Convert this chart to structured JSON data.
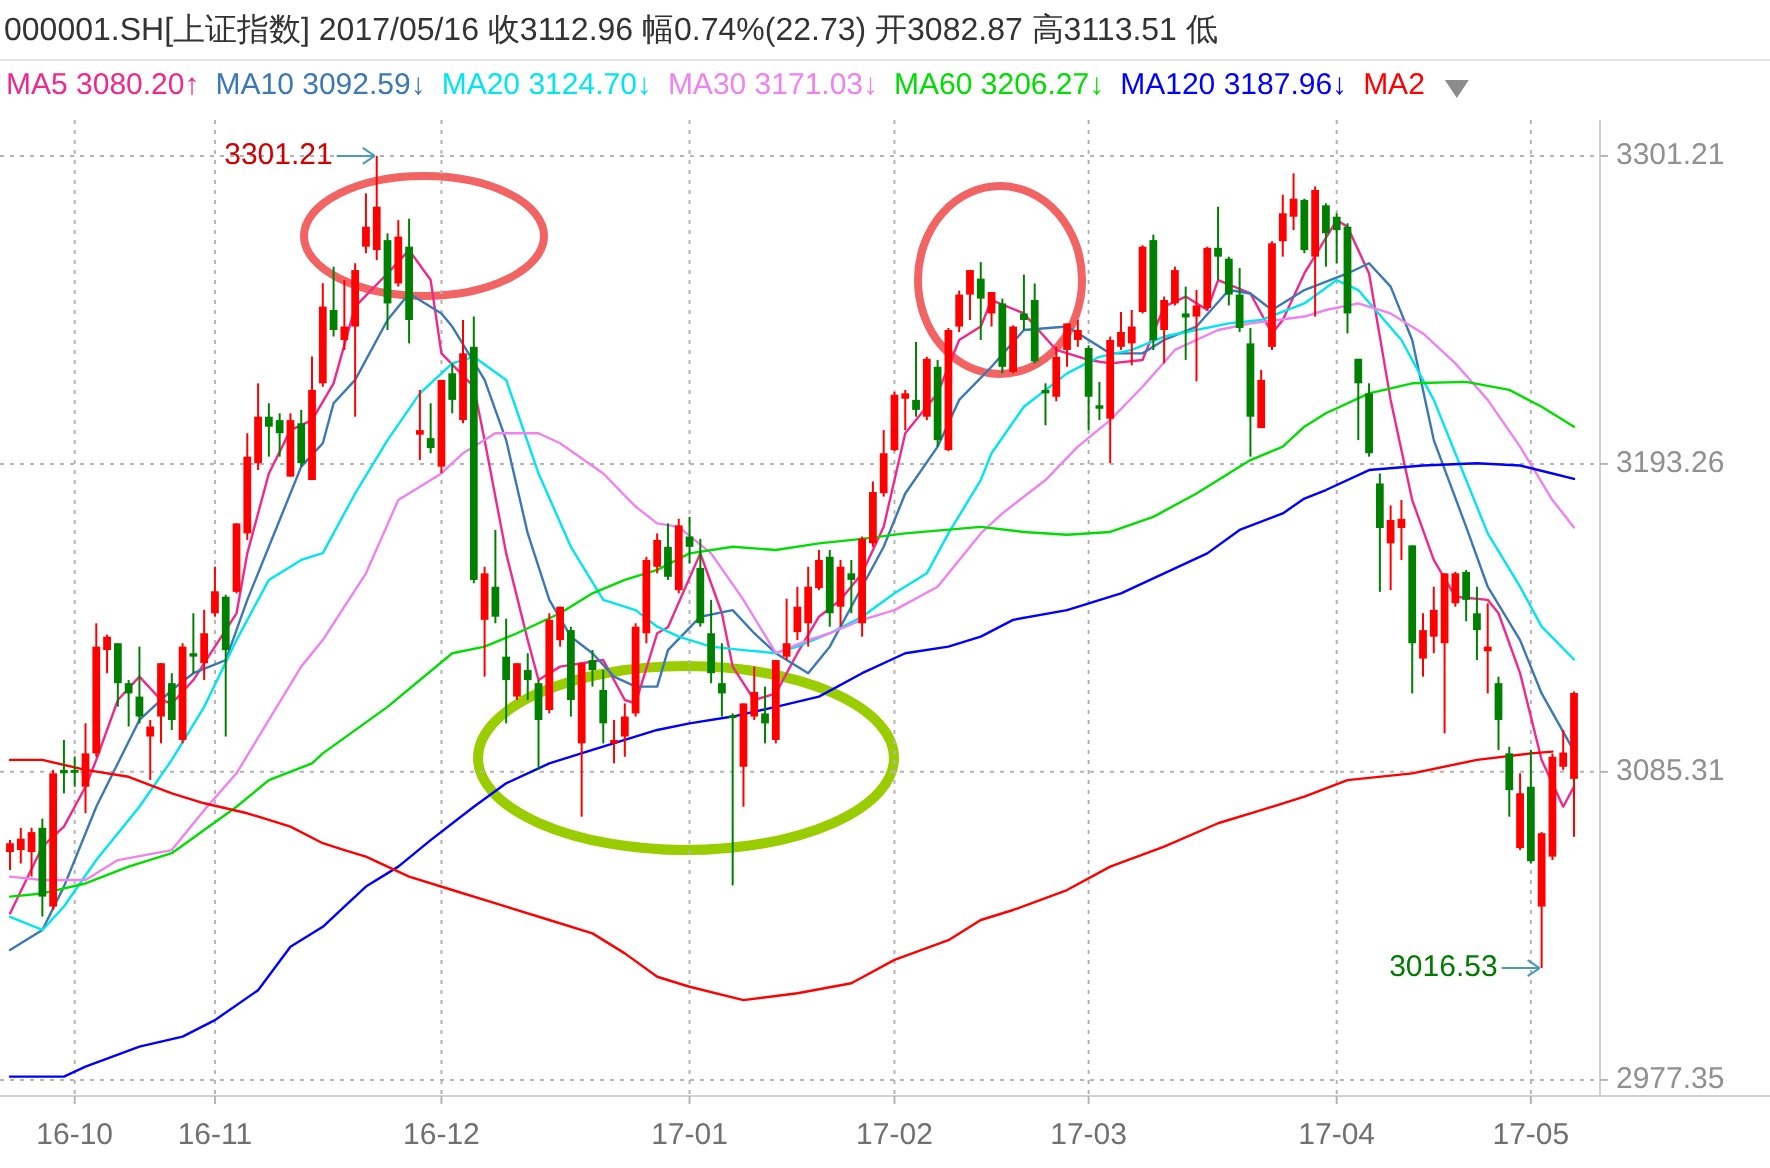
{
  "chart_data": {
    "type": "candlestick",
    "title": "000001.SH[上证指数]  2017/05/16  收3112.96  幅0.74%(22.73)  开3082.87  高3113.51  低",
    "legend": "top",
    "grid": true,
    "ylim": [
      2971.7,
      3313.8
    ],
    "yticks": [
      2977.35,
      3085.31,
      3193.26,
      3301.21
    ],
    "categories": [
      null,
      null,
      null,
      null,
      null,
      null,
      "16-10",
      null,
      null,
      null,
      null,
      null,
      null,
      null,
      null,
      null,
      null,
      null,
      null,
      "16-11",
      null,
      null,
      null,
      null,
      null,
      null,
      null,
      null,
      null,
      null,
      null,
      null,
      null,
      null,
      null,
      null,
      null,
      null,
      null,
      null,
      "16-12",
      null,
      null,
      null,
      null,
      null,
      null,
      null,
      null,
      null,
      null,
      null,
      null,
      null,
      null,
      null,
      null,
      null,
      null,
      null,
      null,
      null,
      null,
      "17-01",
      null,
      null,
      null,
      null,
      null,
      null,
      null,
      null,
      null,
      null,
      null,
      null,
      null,
      null,
      null,
      null,
      null,
      null,
      "17-02",
      null,
      null,
      null,
      null,
      null,
      null,
      null,
      null,
      null,
      null,
      null,
      null,
      null,
      null,
      null,
      null,
      null,
      "17-03",
      null,
      null,
      null,
      null,
      null,
      null,
      null,
      null,
      null,
      null,
      null,
      null,
      null,
      null,
      null,
      null,
      null,
      null,
      null,
      null,
      null,
      null,
      "17-04",
      null,
      null,
      null,
      null,
      null,
      null,
      null,
      null,
      null,
      null,
      null,
      null,
      null,
      null,
      null,
      null,
      null,
      "17-05",
      null,
      null,
      null,
      null
    ],
    "ohlc": [
      [
        3057.2,
        3061.4,
        3050.9,
        3060.3
      ],
      [
        3057.9,
        3065.7,
        3053.2,
        3061.9
      ],
      [
        3057.2,
        3065.7,
        3048.6,
        3064.2
      ],
      [
        3065.7,
        3068.9,
        3034.6,
        3041.6
      ],
      [
        3038.1,
        3086.0,
        3036.9,
        3084.8
      ],
      [
        3086.0,
        3096.5,
        3077.8,
        3084.8
      ],
      [
        3086.0,
        3090.7,
        3080.1,
        3085.0
      ],
      [
        3080.1,
        3102.3,
        3070.8,
        3091.8
      ],
      [
        3091.8,
        3137.4,
        3090.6,
        3129.2
      ],
      [
        3128.0,
        3133.4,
        3119.9,
        3132.7
      ],
      [
        3130.4,
        3130.4,
        3108.2,
        3116.4
      ],
      [
        3116.4,
        3117.5,
        3101.2,
        3112.8
      ],
      [
        3111.7,
        3129.2,
        3102.3,
        3104.7
      ],
      [
        3097.7,
        3103.5,
        3082.5,
        3101.2
      ],
      [
        3104.7,
        3123.4,
        3095.3,
        3123.4
      ],
      [
        3116.4,
        3119.9,
        3100.0,
        3103.5
      ],
      [
        3096.5,
        3130.4,
        3095.3,
        3129.2
      ],
      [
        3126.9,
        3140.9,
        3119.9,
        3125.7
      ],
      [
        3123.4,
        3142.1,
        3117.5,
        3133.9
      ],
      [
        3140.9,
        3157.2,
        3139.7,
        3148.6
      ],
      [
        3146.7,
        3147.4,
        3097.7,
        3128.0
      ],
      [
        3148.4,
        3172.4,
        3147.9,
        3172.4
      ],
      [
        3168.9,
        3204.0,
        3166.6,
        3195.8
      ],
      [
        3193.5,
        3221.5,
        3191.1,
        3209.8
      ],
      [
        3209.8,
        3214.5,
        3195.8,
        3206.3
      ],
      [
        3208.6,
        3211.0,
        3195.8,
        3204.0
      ],
      [
        3188.8,
        3211.0,
        3188.8,
        3208.6
      ],
      [
        3207.5,
        3212.2,
        3192.3,
        3193.5
      ],
      [
        3187.6,
        3230.9,
        3187.6,
        3219.2
      ],
      [
        3221.5,
        3256.6,
        3220.3,
        3248.4
      ],
      [
        3247.2,
        3262.4,
        3237.9,
        3240.2
      ],
      [
        3236.7,
        3257.7,
        3233.2,
        3241.4
      ],
      [
        3241.4,
        3263.6,
        3209.8,
        3261.2
      ],
      [
        3269.4,
        3288.1,
        3267.1,
        3276.4
      ],
      [
        3268.2,
        3301.21,
        3264.7,
        3283.4
      ],
      [
        3271.7,
        3274.1,
        3240.2,
        3249.5
      ],
      [
        3256.5,
        3278.7,
        3255.4,
        3272.9
      ],
      [
        3269.4,
        3279.2,
        3235.5,
        3243.7
      ],
      [
        3203.5,
        3219.2,
        3194.6,
        3205.1
      ],
      [
        3202.3,
        3214.5,
        3197.0,
        3198.8
      ],
      [
        3192.3,
        3222.7,
        3190.0,
        3222.7
      ],
      [
        3225.0,
        3228.5,
        3211.0,
        3215.7
      ],
      [
        3208.6,
        3243.7,
        3207.5,
        3232.0
      ],
      [
        3234.3,
        3244.9,
        3151.4,
        3152.6
      ],
      [
        3138.6,
        3157.2,
        3118.7,
        3154.9
      ],
      [
        3150.2,
        3170.1,
        3137.4,
        3139.7
      ],
      [
        3125.7,
        3139.0,
        3102.3,
        3117.5
      ],
      [
        3111.7,
        3123.4,
        3110.5,
        3123.4
      ],
      [
        3121.0,
        3126.9,
        3110.5,
        3117.5
      ],
      [
        3116.4,
        3117.5,
        3086.0,
        3103.5
      ],
      [
        3107.0,
        3140.9,
        3105.8,
        3138.6
      ],
      [
        3131.5,
        3143.2,
        3129.2,
        3143.2
      ],
      [
        3135.0,
        3136.2,
        3104.7,
        3110.5
      ],
      [
        3095.3,
        3123.4,
        3069.6,
        3123.4
      ],
      [
        3124.5,
        3128.0,
        3115.2,
        3121.0
      ],
      [
        3114.0,
        3121.0,
        3095.3,
        3102.3
      ],
      [
        3095.3,
        3103.5,
        3088.3,
        3096.5
      ],
      [
        3097.7,
        3109.3,
        3090.6,
        3104.7
      ],
      [
        3105.8,
        3137.4,
        3104.7,
        3136.2
      ],
      [
        3133.9,
        3160.7,
        3130.4,
        3159.6
      ],
      [
        3157.2,
        3168.9,
        3154.9,
        3166.6
      ],
      [
        3164.2,
        3172.4,
        3152.6,
        3153.7
      ],
      [
        3149.0,
        3174.0,
        3147.9,
        3171.7
      ],
      [
        3167.8,
        3174.7,
        3158.4,
        3164.2
      ],
      [
        3156.8,
        3167.0,
        3136.2,
        3137.4
      ],
      [
        3133.9,
        3145.6,
        3116.4,
        3119.9
      ],
      [
        3116.4,
        3130.4,
        3104.7,
        3112.8
      ],
      [
        3105.1,
        3105.8,
        3045.5,
        3104.2
      ],
      [
        3087.1,
        3109.3,
        3073.1,
        3109.3
      ],
      [
        3104.7,
        3122.2,
        3103.5,
        3113.3
      ],
      [
        3105.8,
        3115.2,
        3095.3,
        3102.3
      ],
      [
        3096.5,
        3124.5,
        3095.3,
        3124.5
      ],
      [
        3125.7,
        3146.0,
        3124.5,
        3130.4
      ],
      [
        3134.3,
        3150.2,
        3131.5,
        3143.2
      ],
      [
        3137.4,
        3157.2,
        3129.2,
        3150.2
      ],
      [
        3149.7,
        3163.1,
        3149.0,
        3159.6
      ],
      [
        3160.7,
        3163.1,
        3136.2,
        3140.9
      ],
      [
        3143.2,
        3159.6,
        3136.2,
        3157.2
      ],
      [
        3154.9,
        3159.6,
        3140.9,
        3152.6
      ],
      [
        3137.4,
        3167.8,
        3132.7,
        3167.1
      ],
      [
        3165.4,
        3187.1,
        3164.2,
        3183.4
      ],
      [
        3183.0,
        3205.1,
        3181.8,
        3197.0
      ],
      [
        3198.1,
        3218.5,
        3197.7,
        3217.5
      ],
      [
        3216.1,
        3219.2,
        3205.1,
        3218.0
      ],
      [
        3215.7,
        3236.0,
        3209.8,
        3212.2
      ],
      [
        3209.8,
        3230.8,
        3208.6,
        3230.1
      ],
      [
        3227.3,
        3229.7,
        3199.3,
        3201.6
      ],
      [
        3198.1,
        3240.9,
        3197.7,
        3240.2
      ],
      [
        3241.4,
        3254.0,
        3239.5,
        3252.6
      ],
      [
        3252.6,
        3261.2,
        3243.7,
        3261.2
      ],
      [
        3258.2,
        3264.0,
        3236.7,
        3251.2
      ],
      [
        3246.0,
        3253.5,
        3241.4,
        3253.5
      ],
      [
        3249.5,
        3251.2,
        3225.0,
        3227.3
      ],
      [
        3225.5,
        3241.8,
        3225.0,
        3241.4
      ],
      [
        3246.0,
        3259.6,
        3240.2,
        3243.7
      ],
      [
        3250.7,
        3256.5,
        3228.5,
        3229.2
      ],
      [
        3219.2,
        3221.5,
        3206.8,
        3218.0
      ],
      [
        3216.8,
        3234.3,
        3215.2,
        3230.8
      ],
      [
        3233.2,
        3242.5,
        3227.3,
        3242.5
      ],
      [
        3236.7,
        3243.7,
        3234.3,
        3240.2
      ],
      [
        3233.9,
        3234.8,
        3205.1,
        3216.8
      ],
      [
        3213.8,
        3222.0,
        3208.6,
        3212.6
      ],
      [
        3209.1,
        3237.9,
        3193.5,
        3236.7
      ],
      [
        3234.3,
        3246.5,
        3233.2,
        3239.5
      ],
      [
        3235.5,
        3247.2,
        3227.8,
        3241.4
      ],
      [
        3246.5,
        3269.9,
        3246.0,
        3269.4
      ],
      [
        3271.7,
        3273.6,
        3233.2,
        3236.7
      ],
      [
        3240.2,
        3251.9,
        3228.5,
        3250.7
      ],
      [
        3249.5,
        3262.4,
        3248.8,
        3261.2
      ],
      [
        3246.0,
        3255.4,
        3229.7,
        3244.6
      ],
      [
        3244.9,
        3254.2,
        3222.2,
        3248.8
      ],
      [
        3247.9,
        3269.4,
        3247.2,
        3269.0
      ],
      [
        3269.0,
        3283.4,
        3257.7,
        3265.9
      ],
      [
        3265.2,
        3265.9,
        3248.8,
        3252.6
      ],
      [
        3252.6,
        3261.9,
        3239.5,
        3240.9
      ],
      [
        3235.5,
        3240.9,
        3195.8,
        3209.8
      ],
      [
        3205.8,
        3226.2,
        3205.8,
        3222.7
      ],
      [
        3234.3,
        3271.3,
        3233.2,
        3270.6
      ],
      [
        3271.3,
        3287.6,
        3265.9,
        3281.1
      ],
      [
        3279.9,
        3295.1,
        3275.2,
        3286.2
      ],
      [
        3285.8,
        3286.2,
        3267.1,
        3268.2
      ],
      [
        3265.9,
        3290.5,
        3244.9,
        3289.3
      ],
      [
        3283.9,
        3284.6,
        3262.4,
        3274.1
      ],
      [
        3279.9,
        3281.1,
        3263.6,
        3275.2
      ],
      [
        3276.4,
        3277.6,
        3239.0,
        3246.0
      ],
      [
        3230.1,
        3230.1,
        3201.6,
        3221.5
      ],
      [
        3218.0,
        3221.5,
        3195.8,
        3197.0
      ],
      [
        3186.4,
        3189.9,
        3148.4,
        3170.8
      ],
      [
        3165.4,
        3178.7,
        3149.0,
        3173.6
      ],
      [
        3170.8,
        3180.6,
        3159.6,
        3174.0
      ],
      [
        3164.7,
        3164.7,
        3112.8,
        3130.4
      ],
      [
        3125.0,
        3140.9,
        3118.7,
        3135.0
      ],
      [
        3132.7,
        3150.2,
        3126.9,
        3142.1
      ],
      [
        3130.4,
        3154.9,
        3098.8,
        3154.9
      ],
      [
        3144.4,
        3155.4,
        3143.2,
        3154.9
      ],
      [
        3155.4,
        3156.1,
        3138.1,
        3145.6
      ],
      [
        3140.9,
        3150.2,
        3124.5,
        3135.0
      ],
      [
        3127.6,
        3144.4,
        3112.8,
        3129.2
      ],
      [
        3116.4,
        3118.7,
        3093.0,
        3103.5
      ],
      [
        3091.8,
        3094.1,
        3069.6,
        3078.9
      ],
      [
        3058.6,
        3084.8,
        3057.9,
        3077.8
      ],
      [
        3080.1,
        3093.0,
        3053.3,
        3054.0
      ],
      [
        3038.1,
        3064.2,
        3016.53,
        3063.8
      ],
      [
        3055.6,
        3091.8,
        3054.4,
        3090.6
      ],
      [
        3087.1,
        3100.0,
        3086.0,
        3092.1
      ],
      [
        3082.87,
        3113.51,
        3062.6,
        3112.96
      ]
    ],
    "colors": [
      "#ff0000",
      "#ff0000",
      "#ff0000",
      "#008000",
      "#ff0000",
      "#008000",
      "#008000",
      "#ff0000",
      "#ff0000",
      "#ff0000",
      "#008000",
      "#008000",
      "#008000",
      "#ff0000",
      "#ff0000",
      "#008000",
      "#ff0000",
      "#008000",
      "#ff0000",
      "#ff0000",
      "#008000",
      "#ff0000",
      "#ff0000",
      "#ff0000",
      "#008000",
      "#008000",
      "#ff0000",
      "#008000",
      "#ff0000",
      "#ff0000",
      "#008000",
      "#ff0000",
      "#ff0000",
      "#ff0000",
      "#ff0000",
      "#008000",
      "#ff0000",
      "#008000",
      "#ff0000",
      "#008000",
      "#ff0000",
      "#008000",
      "#ff0000",
      "#008000",
      "#ff0000",
      "#008000",
      "#008000",
      "#ff0000",
      "#008000",
      "#008000",
      "#ff0000",
      "#ff0000",
      "#008000",
      "#ff0000",
      "#008000",
      "#008000",
      "#ff0000",
      "#ff0000",
      "#ff0000",
      "#ff0000",
      "#ff0000",
      "#008000",
      "#ff0000",
      "#008000",
      "#008000",
      "#008000",
      "#008000",
      "#008000",
      "#ff0000",
      "#ff0000",
      "#008000",
      "#ff0000",
      "#ff0000",
      "#ff0000",
      "#ff0000",
      "#ff0000",
      "#008000",
      "#ff0000",
      "#008000",
      "#ff0000",
      "#ff0000",
      "#ff0000",
      "#ff0000",
      "#ff0000",
      "#008000",
      "#ff0000",
      "#008000",
      "#ff0000",
      "#ff0000",
      "#ff0000",
      "#008000",
      "#ff0000",
      "#008000",
      "#ff0000",
      "#008000",
      "#008000",
      "#008000",
      "#ff0000",
      "#ff0000",
      "#ff0000",
      "#008000",
      "#008000",
      "#ff0000",
      "#ff0000",
      "#ff0000",
      "#ff0000",
      "#008000",
      "#ff0000",
      "#ff0000",
      "#008000",
      "#ff0000",
      "#ff0000",
      "#008000",
      "#008000",
      "#008000",
      "#008000",
      "#ff0000",
      "#ff0000",
      "#ff0000",
      "#ff0000",
      "#008000",
      "#ff0000",
      "#008000",
      "#008000",
      "#008000",
      "#008000",
      "#008000",
      "#008000",
      "#ff0000",
      "#ff0000",
      "#008000",
      "#ff0000",
      "#ff0000",
      "#ff0000",
      "#ff0000",
      "#008000",
      "#008000",
      "#ff0000",
      "#008000",
      "#008000",
      "#ff0000",
      "#008000",
      "#ff0000",
      "#ff0000",
      "#ff0000",
      "#ff0000"
    ],
    "series": [
      {
        "type": "line",
        "name": "MA5 3080.20↑",
        "color": "#f0288c",
        "values": [
          3035.7,
          null,
          null,
          3059.1,
          null,
          3066.1,
          null,
          3080.1,
          3089.5,
          null,
          3110.5,
          null,
          3118.7,
          null,
          3110.5,
          3109.3,
          null,
          3117.5,
          null,
          3129.2,
          null,
          3140.9,
          3161.9,
          null,
          3189.9,
          null,
          3205.1,
          null,
          3208.6,
          null,
          3221.5,
          null,
          3248.4,
          null,
          null,
          3260.0,
          null,
          3268.2,
          null,
          3257.7,
          3232.0,
          null,
          null,
          3220.3,
          3201.6,
          null,
          3161.9,
          null,
          3131.5,
          3117.5,
          null,
          3122.2,
          null,
          3123.4,
          null,
          3124.5,
          null,
          3110.5,
          3109.3,
          null,
          3133.9,
          3136.0,
          null,
          null,
          3161.9,
          null,
          3140.9,
          3122.2,
          null,
          3110.5,
          null,
          3112.8,
          null,
          3126.9,
          null,
          3139.7,
          null,
          3145.6,
          null,
          3154.9,
          null,
          3171.2,
          null,
          3204.0,
          null,
          null,
          3218.0,
          null,
          3236.7,
          null,
          3241.4,
          3250.7,
          null,
          null,
          3246.0,
          null,
          null,
          3233.2,
          null,
          null,
          3229.7,
          null,
          3228.5,
          null,
          null,
          3229.7,
          null,
          3248.4,
          null,
          3251.9,
          null,
          3247.2,
          3257.7,
          null,
          null,
          3253.0,
          null,
          3239.0,
          3243.7,
          null,
          3260.0,
          null,
          null,
          3278.7,
          3276.4,
          null,
          3260.0,
          null,
          3215.7,
          null,
          3180.6,
          null,
          3159.6,
          null,
          3146.7,
          null,
          null,
          3145.6,
          3140.9,
          null,
          3119.9,
          null,
          3089.5,
          null,
          3073.1,
          3080.2
        ]
      },
      {
        "type": "line",
        "name": "MA10 3092.59↓",
        "color": "#3c78b4",
        "values": [
          3022.9,
          null,
          null,
          3029.9,
          null,
          3045.1,
          null,
          null,
          3073.1,
          null,
          3088.3,
          null,
          3103.5,
          null,
          null,
          3114.0,
          null,
          3119.9,
          null,
          null,
          3124.5,
          null,
          3145.6,
          null,
          null,
          3173.6,
          null,
          3192.3,
          null,
          3200.5,
          3214.5,
          null,
          3222.7,
          null,
          null,
          3243.7,
          null,
          3253.0,
          null,
          null,
          3246.0,
          3241.4,
          null,
          null,
          3222.7,
          null,
          3201.6,
          null,
          3168.9,
          null,
          3145.6,
          null,
          3132.7,
          null,
          3126.9,
          null,
          3118.7,
          null,
          3115.2,
          null,
          3115.2,
          3128.0,
          null,
          null,
          3139.7,
          null,
          null,
          3142.0,
          null,
          3133.9,
          null,
          3126.9,
          null,
          null,
          3119.9,
          null,
          3129.2,
          null,
          3143.2,
          null,
          null,
          3164.2,
          null,
          3182.9,
          null,
          null,
          3199.3,
          null,
          3215.7,
          null,
          null,
          3227.3,
          null,
          null,
          3240.2,
          null,
          null,
          null,
          3241.4,
          null,
          null,
          null,
          3232.0,
          null,
          null,
          3232.0,
          null,
          3236.7,
          null,
          null,
          3241.4,
          null,
          null,
          3254.2,
          null,
          3253.0,
          null,
          3247.2,
          null,
          null,
          3254.2,
          null,
          null,
          null,
          3260.0,
          null,
          3263.6,
          null,
          3255.4,
          null,
          3236.7,
          null,
          3201.6,
          null,
          null,
          3171.2,
          null,
          3150.2,
          null,
          null,
          3131.5,
          null,
          3112.8,
          null,
          null,
          3092.6
        ]
      },
      {
        "type": "line",
        "name": "MA20 3124.70↓",
        "color": "#00e5ee",
        "values": [
          3034.5,
          null,
          null,
          3029.9,
          null,
          3038.1,
          null,
          null,
          3054.4,
          null,
          null,
          null,
          3073.1,
          null,
          null,
          3089.5,
          null,
          null,
          3108.1,
          null,
          null,
          3131.5,
          null,
          null,
          3152.6,
          null,
          null,
          3159.6,
          null,
          3162.0,
          null,
          null,
          3182.9,
          null,
          null,
          3201.6,
          null,
          null,
          3218.0,
          null,
          null,
          3228.5,
          null,
          3230.8,
          null,
          null,
          3222.7,
          null,
          null,
          3189.9,
          null,
          null,
          3164.2,
          null,
          null,
          3145.6,
          null,
          null,
          3142.0,
          null,
          3136.2,
          null,
          3132.7,
          null,
          null,
          3129.2,
          null,
          null,
          3128.0,
          null,
          null,
          3126.9,
          null,
          3129.2,
          null,
          null,
          3133.9,
          null,
          null,
          3139.7,
          null,
          null,
          3147.9,
          null,
          null,
          3154.9,
          null,
          3168.9,
          null,
          null,
          3187.6,
          3197.0,
          null,
          null,
          3213.3,
          null,
          null,
          null,
          3225.0,
          null,
          null,
          3230.8,
          null,
          null,
          3233.2,
          null,
          null,
          3237.9,
          null,
          null,
          3240.2,
          null,
          null,
          3242.5,
          null,
          null,
          3243.7,
          null,
          null,
          null,
          3249.5,
          null,
          null,
          3257.7,
          null,
          3254.2,
          null,
          null,
          null,
          3236.7,
          null,
          null,
          3215.7,
          null,
          null,
          3187.6,
          null,
          3168.9,
          null,
          null,
          3150.2,
          null,
          3136.2,
          null,
          null,
          3124.7
        ]
      },
      {
        "type": "line",
        "name": "MA30 3171.03↓",
        "color": "#ee82ee",
        "values": [
          3048.6,
          null,
          null,
          3047.4,
          null,
          null,
          null,
          3047.4,
          null,
          null,
          3054.4,
          null,
          null,
          null,
          null,
          3057.9,
          null,
          null,
          3071.9,
          null,
          null,
          3084.8,
          null,
          null,
          3103.5,
          null,
          null,
          3122.2,
          null,
          3131.5,
          null,
          3143.2,
          null,
          3154.9,
          null,
          null,
          3180.6,
          null,
          null,
          null,
          3189.9,
          null,
          3197.0,
          null,
          null,
          3204.0,
          null,
          null,
          null,
          3204.0,
          null,
          3200.5,
          null,
          null,
          null,
          3189.9,
          null,
          null,
          3178.3,
          null,
          3172.4,
          null,
          3171.2,
          null,
          null,
          3161.9,
          null,
          null,
          3145.6,
          null,
          null,
          3126.9,
          null,
          null,
          3131.5,
          null,
          3133.9,
          null,
          null,
          3138.6,
          null,
          null,
          3142.0,
          null,
          null,
          null,
          3150.2,
          null,
          null,
          null,
          3168.9,
          null,
          3175.9,
          null,
          null,
          null,
          3187.6,
          null,
          null,
          3199.3,
          null,
          null,
          3208.6,
          null,
          null,
          3220.3,
          null,
          null,
          3233.2,
          null,
          null,
          null,
          3240.2,
          null,
          null,
          3242.5,
          null,
          null,
          null,
          null,
          3244.9,
          null,
          3247.2,
          null,
          null,
          3249.5,
          null,
          null,
          3246.0,
          null,
          null,
          3239.0,
          null,
          null,
          3228.5,
          null,
          null,
          3215.7,
          null,
          null,
          3199.3,
          null,
          null,
          3180.6,
          null,
          3171.0
        ]
      },
      {
        "type": "line",
        "name": "MA60 3206.27↓",
        "color": "#00dd00",
        "values": [
          3041.6,
          null,
          null,
          3042.7,
          null,
          null,
          null,
          3046.2,
          null,
          null,
          null,
          3052.1,
          null,
          null,
          null,
          3056.8,
          null,
          null,
          3064.9,
          null,
          null,
          3073.1,
          null,
          null,
          3082.4,
          null,
          null,
          null,
          3088.3,
          3091.8,
          null,
          null,
          null,
          null,
          null,
          3108.1,
          null,
          null,
          null,
          null,
          null,
          3126.9,
          null,
          null,
          3129.2,
          null,
          null,
          3133.9,
          null,
          null,
          null,
          3140.9,
          null,
          null,
          3147.9,
          null,
          null,
          3152.6,
          null,
          null,
          3156.1,
          null,
          null,
          3161.9,
          null,
          null,
          null,
          3164.2,
          null,
          null,
          null,
          3163.1,
          null,
          null,
          null,
          3165.4,
          null,
          null,
          null,
          3167.0,
          null,
          null,
          null,
          3168.9,
          null,
          null,
          null,
          null,
          null,
          null,
          3171.2,
          null,
          null,
          null,
          3169.4,
          null,
          null,
          null,
          3168.4,
          null,
          null,
          null,
          3169.4,
          null,
          null,
          null,
          3174.7,
          null,
          null,
          null,
          3182.9,
          null,
          null,
          null,
          null,
          3194.6,
          null,
          null,
          3199.3,
          null,
          3206.3,
          null,
          3211.0,
          null,
          null,
          null,
          3218.0,
          null,
          null,
          null,
          3221.5,
          null,
          null,
          null,
          null,
          3222.0,
          null,
          null,
          null,
          3219.2,
          null,
          null,
          3213.3,
          null,
          null,
          3206.3
        ]
      },
      {
        "type": "line",
        "name": "MA120 3187.96↓",
        "color": "#0000ff",
        "values": [
          2978.5,
          null,
          null,
          null,
          null,
          2978.5,
          null,
          2982.0,
          null,
          null,
          null,
          null,
          2989.0,
          null,
          null,
          null,
          2992.5,
          null,
          null,
          2998.3,
          null,
          null,
          null,
          3008.8,
          null,
          null,
          3024.0,
          null,
          null,
          3031.0,
          null,
          3038.1,
          null,
          3045.1,
          null,
          null,
          3052.1,
          null,
          null,
          3061.4,
          null,
          null,
          null,
          3073.1,
          null,
          null,
          3081.3,
          null,
          null,
          null,
          3088.3,
          null,
          null,
          null,
          3093.0,
          null,
          null,
          3096.5,
          null,
          null,
          3100.0,
          null,
          null,
          3102.3,
          null,
          null,
          null,
          3104.7,
          null,
          null,
          null,
          3108.1,
          null,
          null,
          null,
          3111.7,
          null,
          null,
          null,
          3119.9,
          null,
          null,
          null,
          3126.9,
          null,
          null,
          null,
          3129.2,
          null,
          null,
          3132.7,
          null,
          null,
          3138.6,
          null,
          null,
          null,
          null,
          3142.0,
          null,
          null,
          null,
          null,
          3147.9,
          null,
          null,
          null,
          3154.9,
          null,
          null,
          null,
          3161.9,
          null,
          null,
          3170.1,
          null,
          null,
          null,
          3175.9,
          null,
          3181.1,
          null,
          3184.1,
          null,
          null,
          null,
          3191.1,
          null,
          null,
          null,
          null,
          3192.7,
          null,
          null,
          null,
          null,
          3193.5,
          null,
          null,
          null,
          3192.7,
          null,
          null,
          3189.9,
          null,
          3188.0
        ]
      },
      {
        "type": "line",
        "name": "MA2",
        "color": "#ff0000",
        "values": [
          3089.5,
          null,
          null,
          3089.5,
          null,
          null,
          null,
          3086.0,
          null,
          null,
          null,
          3083.6,
          null,
          null,
          null,
          3077.8,
          null,
          null,
          3074.3,
          null,
          null,
          null,
          3070.8,
          null,
          null,
          null,
          3066.1,
          null,
          null,
          3060.3,
          null,
          3057.9,
          null,
          3055.6,
          null,
          null,
          null,
          3048.6,
          null,
          null,
          null,
          3043.9,
          null,
          null,
          null,
          null,
          3038.1,
          null,
          null,
          null,
          3033.4,
          null,
          null,
          null,
          3028.7,
          null,
          null,
          3021.7,
          null,
          null,
          3013.5,
          null,
          null,
          3010.0,
          null,
          null,
          null,
          null,
          3005.3,
          null,
          null,
          null,
          null,
          3007.7,
          null,
          null,
          null,
          null,
          3011.2,
          null,
          null,
          null,
          3019.4,
          null,
          null,
          null,
          null,
          3026.3,
          null,
          null,
          3033.4,
          null,
          null,
          3036.9,
          null,
          null,
          null,
          null,
          3043.9,
          null,
          null,
          null,
          3052.1,
          null,
          null,
          null,
          null,
          3059.1,
          null,
          null,
          null,
          null,
          3067.3,
          null,
          null,
          null,
          3071.9,
          null,
          null,
          null,
          3076.6,
          null,
          null,
          null,
          3082.4,
          null,
          null,
          null,
          null,
          null,
          3084.8,
          null,
          null,
          null,
          null,
          null,
          3089.5,
          null,
          null,
          null,
          null,
          3091.8,
          null,
          3092.4,
          null,
          null
        ]
      }
    ],
    "annotations": [
      "3301.21",
      "3016.53"
    ]
  }
}
